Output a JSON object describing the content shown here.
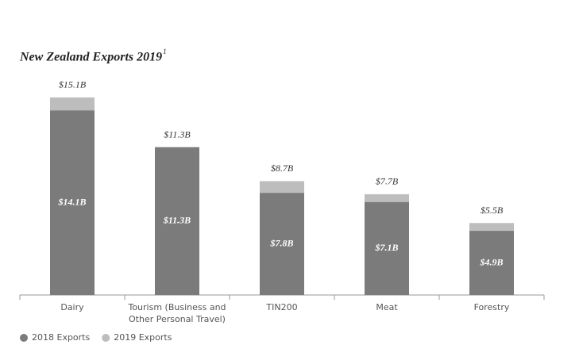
{
  "chart_data": {
    "type": "bar",
    "mode": "overlap",
    "title": "New Zealand Exports 2019",
    "title_superscript": "1",
    "categories": [
      "Dairy",
      "Tourism (Business and Other Personal Travel)",
      "TIN200",
      "Meat",
      "Forestry"
    ],
    "series": [
      {
        "name": "2018 Exports",
        "color": "#7b7b7b",
        "values": [
          14.1,
          11.3,
          7.8,
          7.1,
          4.9
        ],
        "value_labels": [
          "$14.1B",
          "$11.3B",
          "$7.8B",
          "$7.1B",
          "$4.9B"
        ]
      },
      {
        "name": "2019 Exports",
        "color": "#bdbdbd",
        "values": [
          15.1,
          11.3,
          8.7,
          7.7,
          5.5
        ],
        "value_labels": [
          "$15.1B",
          "$11.3B",
          "$8.7B",
          "$7.7B",
          "$5.5B"
        ]
      }
    ],
    "ylim": [
      0,
      16
    ],
    "legend": "bottom-left"
  }
}
